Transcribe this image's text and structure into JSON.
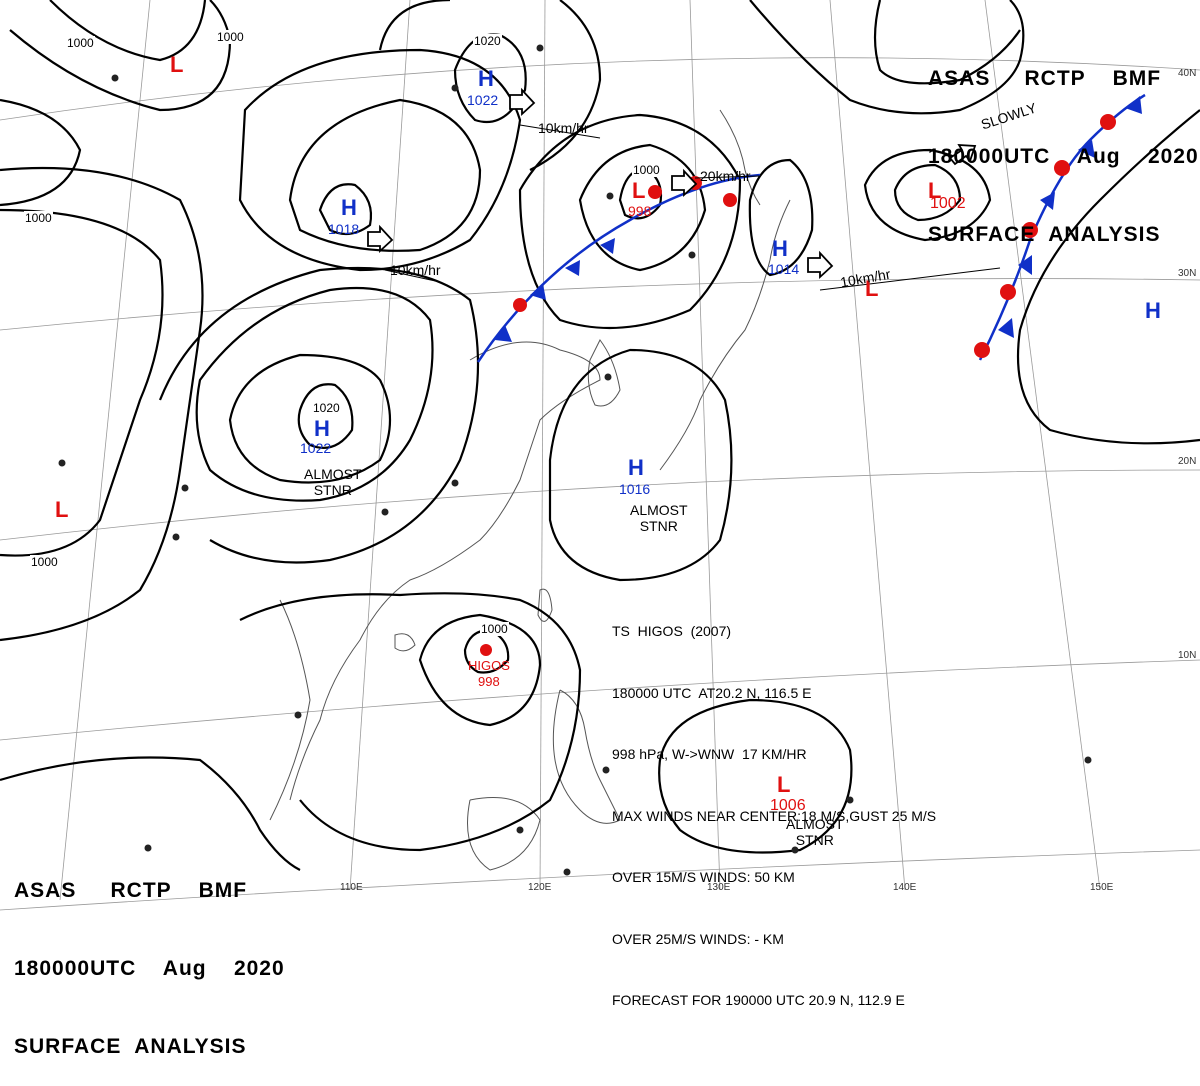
{
  "header": {
    "line1": "ASAS     RCTP    BMF",
    "line2": "180000UTC    Aug    2020",
    "line3": "SURFACE  ANALYSIS"
  },
  "systems": [
    {
      "type": "H",
      "pressure": "1022"
    },
    {
      "type": "H",
      "pressure": "1018"
    },
    {
      "type": "H",
      "pressure": "1022"
    },
    {
      "type": "H",
      "pressure": "1016"
    },
    {
      "type": "H",
      "pressure": "1014"
    },
    {
      "type": "L",
      "pressure": "998"
    },
    {
      "type": "L",
      "pressure": "1002"
    },
    {
      "type": "L",
      "pressure": "1006"
    },
    {
      "type": "L",
      "pressure": "998",
      "name": "HIGOS"
    },
    {
      "type": "H",
      "pressure": ""
    },
    {
      "type": "L",
      "pressure": ""
    },
    {
      "type": "L",
      "pressure": ""
    },
    {
      "type": "L",
      "pressure": ""
    }
  ],
  "isobar_labels": [
    "1000",
    "1000",
    "1000",
    "1000",
    "1020",
    "1000",
    "1020",
    "1000"
  ],
  "movement_labels": [
    "10km/hr",
    "10km/hr",
    "20km/hr",
    "10km/hr",
    "SLOWLY"
  ],
  "notes": [
    "ALMOST",
    "STNR"
  ],
  "latitudes": [
    "40N",
    "30N",
    "20N",
    "10N"
  ],
  "longitudes": [
    "110E",
    "120E",
    "130E",
    "140E",
    "150E"
  ],
  "typhoon": {
    "line1": "TS  HIGOS  (2007)",
    "line2": "180000 UTC  AT20.2 N, 116.5 E",
    "line3": "998 hPa, W->WNW  17 KM/HR",
    "line4": "MAX WINDS NEAR CENTER:18 M/S,GUST 25 M/S",
    "line5": "OVER 15M/S WINDS: 50 KM",
    "line6": "OVER 25M/S WINDS: - KM",
    "line7": "FORECAST FOR 190000 UTC 20.9 N, 112.9 E"
  },
  "colors": {
    "high": "#1030c8",
    "low": "#e01010",
    "isobar": "#000000",
    "grid": "#888888"
  }
}
